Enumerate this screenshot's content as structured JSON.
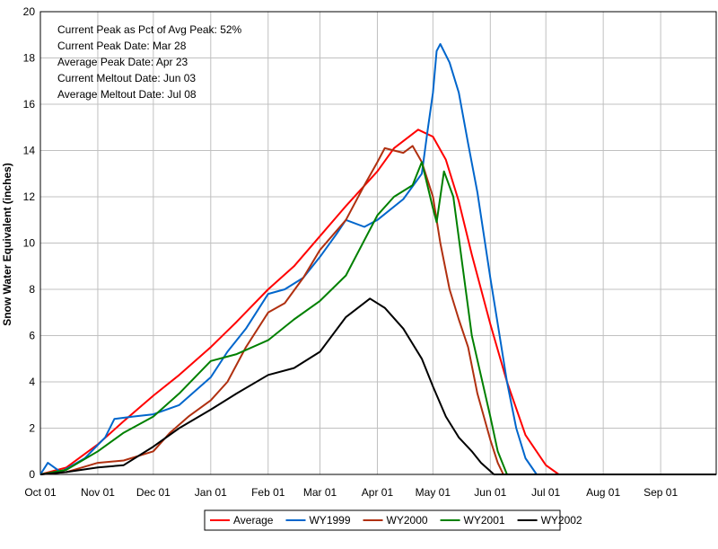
{
  "chart_data": {
    "type": "line",
    "title": "",
    "xlabel": "",
    "ylabel": "Snow Water Equivalent (inches)",
    "ylim": [
      0,
      20
    ],
    "yticks": [
      0,
      2,
      4,
      6,
      8,
      10,
      12,
      14,
      16,
      18,
      20
    ],
    "xlim": [
      "Oct 01",
      "Sep 30"
    ],
    "x_tick_labels": [
      "Oct 01",
      "Nov 01",
      "Dec 01",
      "Jan 01",
      "Feb 01",
      "Mar 01",
      "Apr 01",
      "May 01",
      "Jun 01",
      "Jul 01",
      "Aug 01",
      "Sep 01"
    ],
    "grid": true,
    "legend_position": "bottom",
    "annotations": [
      "Current Peak as Pct of Avg Peak: 52%",
      "Current Peak Date: Mar 28",
      "Average Peak Date: Apr 23",
      "Current Meltout Date: Jun 03",
      "Average Meltout Date: Jul 08"
    ],
    "series": [
      {
        "name": "Average",
        "color": "#ff0000",
        "points": [
          [
            "Oct 01",
            0
          ],
          [
            "Oct 15",
            0.3
          ],
          [
            "Nov 01",
            1.3
          ],
          [
            "Nov 15",
            2.3
          ],
          [
            "Dec 01",
            3.4
          ],
          [
            "Dec 15",
            4.3
          ],
          [
            "Jan 01",
            5.5
          ],
          [
            "Jan 15",
            6.6
          ],
          [
            "Feb 01",
            8.0
          ],
          [
            "Feb 15",
            9.0
          ],
          [
            "Mar 01",
            10.3
          ],
          [
            "Mar 15",
            11.6
          ],
          [
            "Apr 01",
            13.1
          ],
          [
            "Apr 10",
            14.1
          ],
          [
            "Apr 23",
            14.9
          ],
          [
            "May 01",
            14.6
          ],
          [
            "May 08",
            13.6
          ],
          [
            "May 15",
            11.8
          ],
          [
            "May 22",
            9.5
          ],
          [
            "Jun 01",
            6.5
          ],
          [
            "Jun 10",
            4.0
          ],
          [
            "Jun 20",
            1.7
          ],
          [
            "Jul 01",
            0.4
          ],
          [
            "Jul 08",
            0
          ]
        ]
      },
      {
        "name": "WY1999",
        "color": "#0066cc",
        "points": [
          [
            "Oct 01",
            0
          ],
          [
            "Oct 05",
            0.5
          ],
          [
            "Oct 12",
            0.1
          ],
          [
            "Oct 25",
            0.7
          ],
          [
            "Nov 05",
            1.6
          ],
          [
            "Nov 10",
            2.4
          ],
          [
            "Nov 20",
            2.5
          ],
          [
            "Dec 01",
            2.6
          ],
          [
            "Dec 15",
            3.0
          ],
          [
            "Jan 01",
            4.2
          ],
          [
            "Jan 10",
            5.3
          ],
          [
            "Jan 20",
            6.3
          ],
          [
            "Feb 01",
            7.8
          ],
          [
            "Feb 10",
            8.0
          ],
          [
            "Feb 20",
            8.5
          ],
          [
            "Mar 01",
            9.4
          ],
          [
            "Mar 10",
            10.4
          ],
          [
            "Mar 15",
            11.0
          ],
          [
            "Mar 25",
            10.7
          ],
          [
            "Apr 01",
            11.0
          ],
          [
            "Apr 15",
            11.9
          ],
          [
            "Apr 25",
            13.0
          ],
          [
            "Apr 28",
            14.8
          ],
          [
            "May 01",
            16.5
          ],
          [
            "May 03",
            18.3
          ],
          [
            "May 05",
            18.6
          ],
          [
            "May 10",
            17.8
          ],
          [
            "May 15",
            16.5
          ],
          [
            "May 20",
            14.3
          ],
          [
            "May 25",
            12.2
          ],
          [
            "Jun 01",
            8.5
          ],
          [
            "Jun 05",
            6.5
          ],
          [
            "Jun 10",
            4.0
          ],
          [
            "Jun 15",
            2.0
          ],
          [
            "Jun 20",
            0.7
          ],
          [
            "Jun 26",
            0
          ]
        ]
      },
      {
        "name": "WY2000",
        "color": "#b03010",
        "points": [
          [
            "Oct 01",
            0
          ],
          [
            "Oct 15",
            0.1
          ],
          [
            "Nov 01",
            0.5
          ],
          [
            "Nov 15",
            0.6
          ],
          [
            "Dec 01",
            1.0
          ],
          [
            "Dec 10",
            1.8
          ],
          [
            "Dec 20",
            2.5
          ],
          [
            "Jan 01",
            3.2
          ],
          [
            "Jan 10",
            4.0
          ],
          [
            "Jan 20",
            5.5
          ],
          [
            "Feb 01",
            7.0
          ],
          [
            "Feb 10",
            7.4
          ],
          [
            "Feb 20",
            8.5
          ],
          [
            "Mar 01",
            9.7
          ],
          [
            "Mar 15",
            11.0
          ],
          [
            "Mar 25",
            12.5
          ],
          [
            "Apr 01",
            13.5
          ],
          [
            "Apr 05",
            14.1
          ],
          [
            "Apr 15",
            13.9
          ],
          [
            "Apr 20",
            14.2
          ],
          [
            "Apr 25",
            13.5
          ],
          [
            "May 01",
            12.0
          ],
          [
            "May 05",
            10.0
          ],
          [
            "May 10",
            8.0
          ],
          [
            "May 15",
            6.7
          ],
          [
            "May 20",
            5.5
          ],
          [
            "May 25",
            3.5
          ],
          [
            "Jun 01",
            1.5
          ],
          [
            "Jun 05",
            0.5
          ],
          [
            "Jun 08",
            0
          ]
        ]
      },
      {
        "name": "WY2001",
        "color": "#008000",
        "points": [
          [
            "Oct 01",
            0
          ],
          [
            "Oct 15",
            0.2
          ],
          [
            "Nov 01",
            1.0
          ],
          [
            "Nov 15",
            1.8
          ],
          [
            "Dec 01",
            2.5
          ],
          [
            "Dec 15",
            3.5
          ],
          [
            "Jan 01",
            4.9
          ],
          [
            "Jan 15",
            5.2
          ],
          [
            "Feb 01",
            5.8
          ],
          [
            "Feb 15",
            6.7
          ],
          [
            "Mar 01",
            7.5
          ],
          [
            "Mar 15",
            8.6
          ],
          [
            "Apr 01",
            11.2
          ],
          [
            "Apr 10",
            12.0
          ],
          [
            "Apr 20",
            12.5
          ],
          [
            "Apr 25",
            13.5
          ],
          [
            "May 01",
            11.5
          ],
          [
            "May 03",
            10.9
          ],
          [
            "May 07",
            13.1
          ],
          [
            "May 12",
            12.0
          ],
          [
            "May 17",
            9.0
          ],
          [
            "May 22",
            6.0
          ],
          [
            "Jun 01",
            2.5
          ],
          [
            "Jun 05",
            1.0
          ],
          [
            "Jun 10",
            0
          ]
        ]
      },
      {
        "name": "WY2002",
        "color": "#000000",
        "points": [
          [
            "Oct 01",
            0
          ],
          [
            "Oct 15",
            0.1
          ],
          [
            "Nov 01",
            0.3
          ],
          [
            "Nov 15",
            0.4
          ],
          [
            "Dec 01",
            1.2
          ],
          [
            "Dec 15",
            2.0
          ],
          [
            "Jan 01",
            2.8
          ],
          [
            "Jan 15",
            3.5
          ],
          [
            "Feb 01",
            4.3
          ],
          [
            "Feb 15",
            4.6
          ],
          [
            "Mar 01",
            5.3
          ],
          [
            "Mar 15",
            6.8
          ],
          [
            "Mar 28",
            7.6
          ],
          [
            "Apr 05",
            7.2
          ],
          [
            "Apr 15",
            6.3
          ],
          [
            "Apr 25",
            5.0
          ],
          [
            "May 01",
            3.8
          ],
          [
            "May 08",
            2.5
          ],
          [
            "May 15",
            1.6
          ],
          [
            "May 22",
            1.0
          ],
          [
            "May 27",
            0.5
          ],
          [
            "Jun 03",
            0
          ]
        ]
      }
    ]
  }
}
